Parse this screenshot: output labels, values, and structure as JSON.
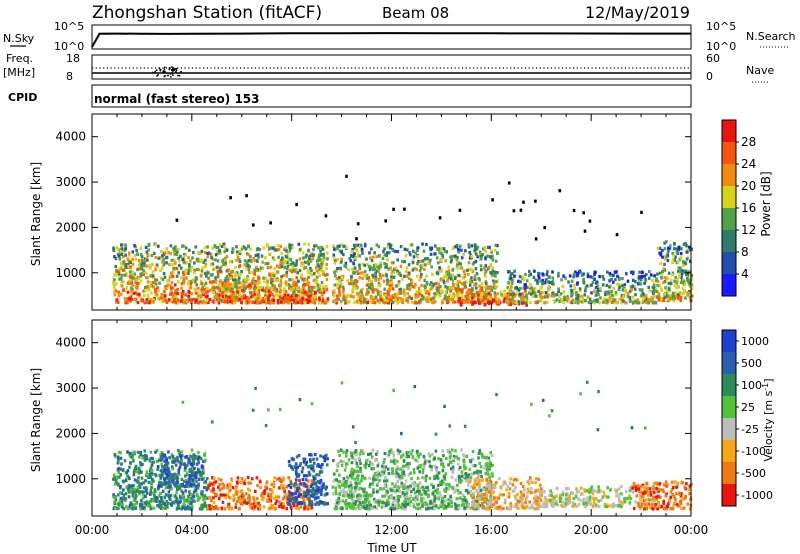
{
  "header": {
    "station": "Zhongshan Station (fitACF)",
    "beam": "Beam 08",
    "date": "12/May/2019"
  },
  "panel_labels": {
    "nsky": "N.Sky",
    "nsky_ticks": [
      "10^5",
      "10^0"
    ],
    "nsearch": "N.Search",
    "nsearch_ticks": [
      "10^5",
      "10^0"
    ],
    "freq": "Freq.",
    "freq_unit": "[MHz]",
    "freq_ticks": [
      "18",
      "8"
    ],
    "nave": "Nave",
    "nave_ticks": [
      "60",
      "0"
    ],
    "cpid": "CPID",
    "cpid_text": "normal (fast stereo) 153"
  },
  "chart_data": [
    {
      "type": "line",
      "name": "sky_noise_and_search_noise",
      "ylabel_left": "N.Sky",
      "ylabel_right": "N.Search",
      "x_range_hours": [
        0,
        24
      ],
      "y_scale": "log",
      "y_ticks": [
        "10^0",
        "10^5"
      ],
      "series": [
        {
          "x": [
            0.0,
            0.3,
            1,
            2,
            3,
            4,
            6,
            8,
            10,
            12,
            14,
            16,
            18,
            20,
            22,
            24
          ],
          "y": [
            1,
            2000,
            2200,
            2000,
            1900,
            2000,
            2300,
            2600,
            2800,
            3000,
            2800,
            2600,
            2500,
            2400,
            2300,
            2200
          ]
        },
        {
          "x": [
            0.0,
            0.3,
            1,
            2,
            3,
            4,
            6,
            8,
            10,
            12,
            14,
            16,
            18,
            20,
            22,
            24
          ],
          "y": [
            1,
            2500,
            2600,
            2400,
            2300,
            2400,
            2600,
            3000,
            3200,
            3400,
            3200,
            3000,
            2900,
            2800,
            2700,
            2600
          ]
        }
      ]
    },
    {
      "type": "scatter",
      "name": "frequency_and_nave",
      "ylabel_left": "Freq. [MHz]",
      "ylabel_right": "Nave",
      "x_range_hours": [
        0,
        24
      ],
      "freq_range": [
        8,
        18
      ],
      "nave_range": [
        0,
        60
      ],
      "series": [
        {
          "x": [
            0.0,
            1,
            2,
            3,
            4,
            6,
            8,
            10,
            12,
            14,
            16,
            18,
            20,
            22,
            24
          ],
          "y": [
            10,
            10,
            10,
            10,
            10,
            10,
            10,
            10,
            10,
            10,
            10,
            10,
            10,
            10,
            10
          ]
        },
        {
          "x": [
            0.0,
            1,
            2,
            3,
            4,
            6,
            8,
            10,
            12,
            14,
            16,
            18,
            20,
            22,
            24
          ],
          "y": [
            12.5,
            12.5,
            12.5,
            12.5,
            12.5,
            12.5,
            12.5,
            12.5,
            12.5,
            12.5,
            12.5,
            12.5,
            12.5,
            12.5,
            12.5
          ]
        }
      ]
    },
    {
      "type": "heatmap",
      "name": "power",
      "ylabel": "Slant Range [km]",
      "xlabel": "",
      "x_range_hours": [
        0,
        24
      ],
      "y_range_km": [
        180,
        4500
      ],
      "y_ticks": [
        1000,
        2000,
        3000,
        4000
      ],
      "colorbar_label": "Power [dB]",
      "colorbar_ticks": [
        4,
        8,
        12,
        16,
        20,
        24,
        28
      ],
      "colorbar_range": [
        0,
        32
      ],
      "colors": [
        "#1a1aff",
        "#1f4fa8",
        "#2f7c6a",
        "#4fa24a",
        "#d7d21c",
        "#f28a12",
        "#f0560f",
        "#e8160f"
      ],
      "clusters": [
        {
          "t0": 0.8,
          "t1": 9.4,
          "r0": 300,
          "r1": 1600,
          "intensity": 0.65
        },
        {
          "t0": 4.8,
          "t1": 8.8,
          "r0": 300,
          "r1": 850,
          "intensity": 0.85
        },
        {
          "t0": 9.6,
          "t1": 16.2,
          "r0": 300,
          "r1": 1600,
          "intensity": 0.55
        },
        {
          "t0": 14.6,
          "t1": 17.4,
          "r0": 250,
          "r1": 650,
          "intensity": 0.9
        },
        {
          "t0": 16.6,
          "t1": 22.6,
          "r0": 300,
          "r1": 1000,
          "intensity": 0.35
        },
        {
          "t0": 22.6,
          "t1": 24.0,
          "r0": 350,
          "r1": 1650,
          "intensity": 0.4
        }
      ]
    },
    {
      "type": "heatmap",
      "name": "velocity",
      "ylabel": "Slant Range [km]",
      "xlabel": "Time UT",
      "x_range_hours": [
        0,
        24
      ],
      "x_ticks": [
        "00:00",
        "04:00",
        "08:00",
        "12:00",
        "16:00",
        "20:00",
        "00:00"
      ],
      "y_range_km": [
        180,
        4500
      ],
      "y_ticks": [
        1000,
        2000,
        3000,
        4000
      ],
      "colorbar_label": "Velocity [m s^-1]",
      "colorbar_ticks": [
        "1000",
        "500",
        "100",
        "25",
        "-25",
        "-100",
        "-500",
        "-1000"
      ],
      "colors": [
        "#1f3fd0",
        "#2a5fb0",
        "#2f8a5a",
        "#52c23a",
        "#bdbdbd",
        "#f5a817",
        "#f07a12",
        "#e8160f"
      ],
      "clusters": [
        {
          "t0": 0.8,
          "t1": 4.6,
          "r0": 300,
          "r1": 1600,
          "vel_class": 2
        },
        {
          "t0": 2.6,
          "t1": 4.4,
          "r0": 800,
          "r1": 1500,
          "vel_class": 1
        },
        {
          "t0": 4.6,
          "t1": 8.8,
          "r0": 300,
          "r1": 1000,
          "vel_class": 6
        },
        {
          "t0": 7.8,
          "t1": 9.4,
          "r0": 400,
          "r1": 1500,
          "vel_class": 1
        },
        {
          "t0": 9.6,
          "t1": 16.0,
          "r0": 300,
          "r1": 1600,
          "vel_class": 3
        },
        {
          "t0": 15.0,
          "t1": 18.0,
          "r0": 300,
          "r1": 1000,
          "vel_class": 5
        },
        {
          "t0": 18.0,
          "t1": 22.6,
          "r0": 350,
          "r1": 800,
          "vel_class": 4
        },
        {
          "t0": 21.6,
          "t1": 24.0,
          "r0": 300,
          "r1": 900,
          "vel_class": 6
        }
      ]
    }
  ]
}
